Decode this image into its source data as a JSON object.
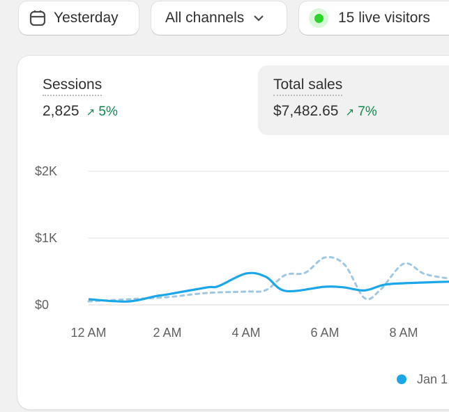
{
  "toolbar": {
    "date_label": "Yesterday",
    "channel_label": "All channels",
    "live_label": "15 live visitors"
  },
  "metrics": [
    {
      "label": "Sessions",
      "value": "2,825",
      "delta": "5%"
    },
    {
      "label": "Total sales",
      "value": "$7,482.65",
      "delta": "7%"
    }
  ],
  "colors": {
    "accent": "#1ba6e8",
    "comparison": "#9cc8e4",
    "positive": "#0c8a4e",
    "live": "#2bd52b"
  },
  "chart_data": {
    "type": "line",
    "ylim": [
      0,
      2000
    ],
    "y_ticks": [
      "$0",
      "$1K",
      "$2K"
    ],
    "x_ticks": [
      "12 AM",
      "2 AM",
      "4 AM",
      "6 AM",
      "8 AM"
    ],
    "series": [
      {
        "style": "solid",
        "x_hours": [
          0,
          1,
          1.7,
          2,
          3,
          3.3,
          4,
          4.5,
          5,
          6,
          6.5,
          7,
          7.5,
          8,
          9,
          9.2
        ],
        "values": [
          83,
          50,
          130,
          156,
          260,
          280,
          469,
          420,
          208,
          271,
          260,
          215,
          300,
          323,
          344,
          344
        ]
      },
      {
        "style": "dashed",
        "x_hours": [
          0,
          1,
          2,
          3,
          4,
          4.5,
          5,
          5.5,
          6,
          6.5,
          7,
          7.4,
          8,
          8.5,
          9,
          9.2
        ],
        "values": [
          52,
          83,
          115,
          177,
          198,
          220,
          448,
          480,
          708,
          600,
          104,
          220,
          615,
          470,
          406,
          406
        ]
      }
    ],
    "legend": [
      {
        "name": "Jan 1"
      }
    ],
    "legend_placement": "bottom-right",
    "grid": true
  }
}
